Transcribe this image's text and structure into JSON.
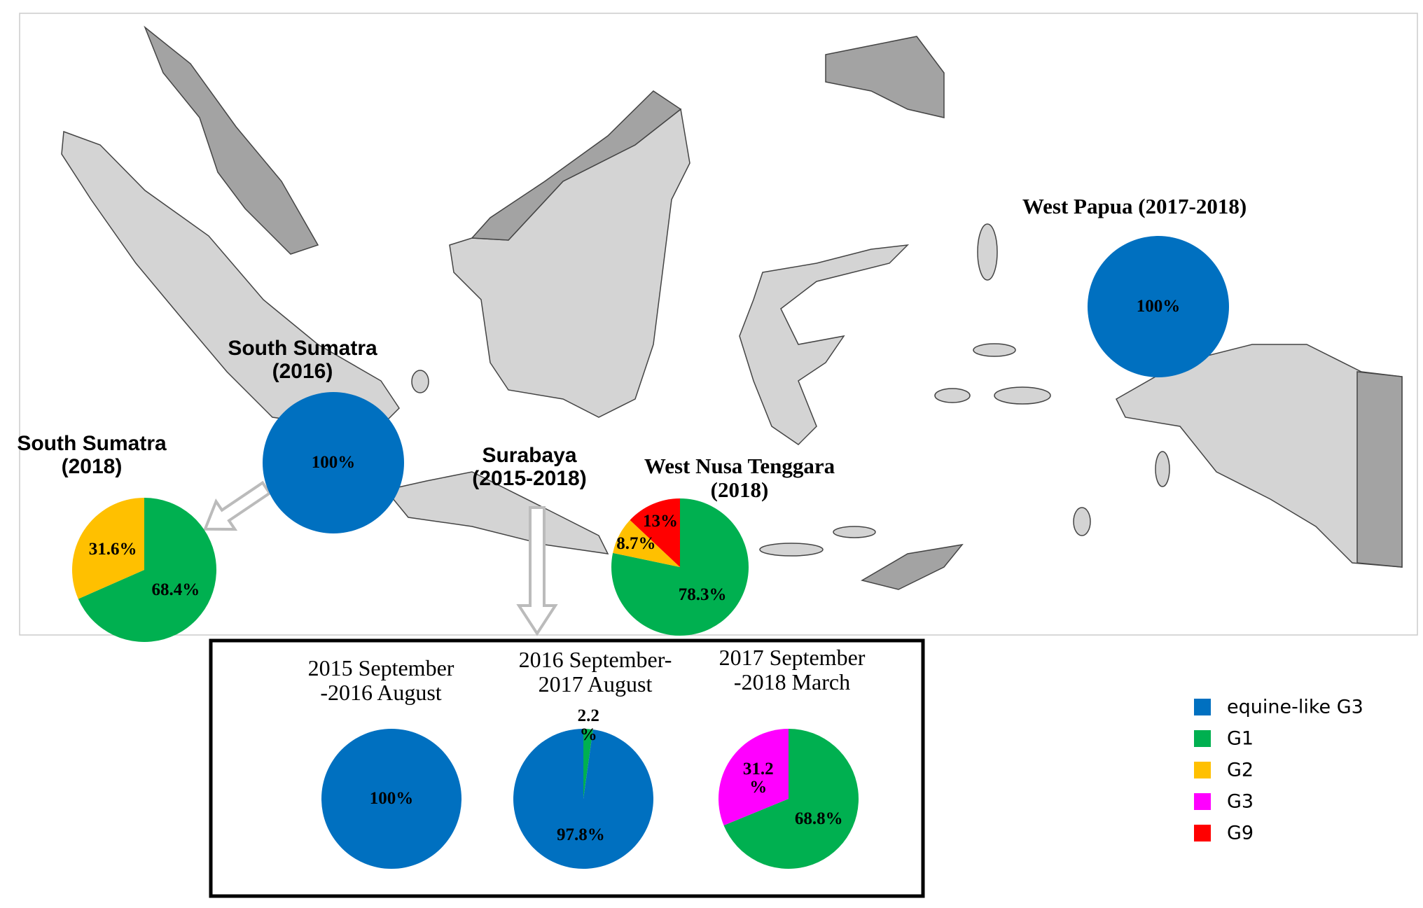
{
  "chart_data": [
    {
      "type": "pie",
      "title": "West Papua (2017-2018)",
      "categories": [
        "equine-like G3"
      ],
      "colors": [
        "#0070c0"
      ],
      "values": [
        100
      ],
      "value_labels": [
        "100%"
      ]
    },
    {
      "type": "pie",
      "title": "South Sumatra\n(2016)",
      "categories": [
        "equine-like G3"
      ],
      "colors": [
        "#0070c0"
      ],
      "values": [
        100
      ],
      "value_labels": [
        "100%"
      ]
    },
    {
      "type": "pie",
      "title": "South Sumatra\n(2018)",
      "categories": [
        "G1",
        "G2"
      ],
      "colors": [
        "#00b050",
        "#ffc000"
      ],
      "values": [
        68.4,
        31.6
      ],
      "value_labels": [
        "68.4%",
        "31.6%"
      ]
    },
    {
      "type": "pie",
      "title": "West Nusa Tenggara\n(2018)",
      "categories": [
        "G1",
        "G2",
        "G9"
      ],
      "colors": [
        "#00b050",
        "#ffc000",
        "#ff0000"
      ],
      "values": [
        78.3,
        8.7,
        13
      ],
      "value_labels": [
        "78.3%",
        "8.7%",
        "13%"
      ]
    },
    {
      "type": "pie",
      "title": "2015 September\n-2016 August",
      "categories": [
        "equine-like G3"
      ],
      "colors": [
        "#0070c0"
      ],
      "values": [
        100
      ],
      "value_labels": [
        "100%"
      ]
    },
    {
      "type": "pie",
      "title": "2016 September-\n2017 August",
      "categories": [
        "G1",
        "equine-like G3"
      ],
      "colors": [
        "#00b050",
        "#0070c0"
      ],
      "values": [
        2.2,
        97.8
      ],
      "value_labels": [
        "2.2\n%",
        "97.8%"
      ]
    },
    {
      "type": "pie",
      "title": "2017 September\n-2018 March",
      "categories": [
        "G1",
        "G3"
      ],
      "colors": [
        "#00b050",
        "#ff00ff"
      ],
      "values": [
        68.8,
        31.2
      ],
      "value_labels": [
        "68.8%",
        "31.2\n%"
      ]
    }
  ],
  "annotation": "Surabaya\n(2015-2018)",
  "legend": [
    {
      "name": "equine-like G3",
      "color": "#0070c0"
    },
    {
      "name": "G1",
      "color": "#00b050"
    },
    {
      "name": "G2",
      "color": "#ffc000"
    },
    {
      "name": "G3",
      "color": "#ff00ff"
    },
    {
      "name": "G9",
      "color": "#ff0000"
    }
  ]
}
